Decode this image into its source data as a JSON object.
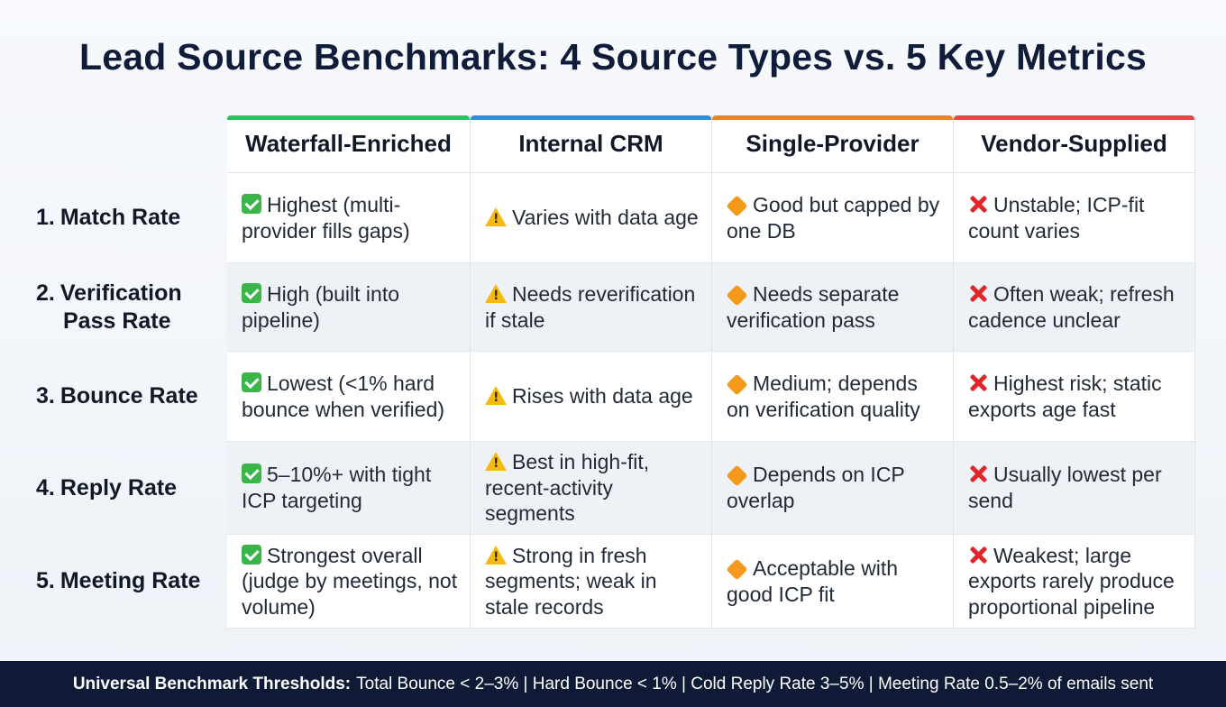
{
  "title": "Lead Source Benchmarks: 4 Source Types vs. 5 Key Metrics",
  "columns": [
    {
      "label": "Waterfall-Enriched",
      "color": "#2fbf63"
    },
    {
      "label": "Internal CRM",
      "color": "#2f8ed9"
    },
    {
      "label": "Single-Provider",
      "color": "#e6862a"
    },
    {
      "label": "Vendor-Supplied",
      "color": "#dd4a48"
    }
  ],
  "rows": [
    {
      "number": "1.",
      "label_line1": "Match Rate",
      "label_line2": "",
      "cells": [
        {
          "icon": "check-icon",
          "text": "Highest (multi-provider fills gaps)"
        },
        {
          "icon": "warning-icon",
          "text": "Varies with data age"
        },
        {
          "icon": "diamond-icon",
          "text": "Good but capped by one DB"
        },
        {
          "icon": "cross-icon",
          "text": "Unstable; ICP-fit count varies"
        }
      ]
    },
    {
      "number": "2.",
      "label_line1": "Verification",
      "label_line2": "Pass Rate",
      "cells": [
        {
          "icon": "check-icon",
          "text": "High (built into pipeline)"
        },
        {
          "icon": "warning-icon",
          "text": "Needs reverification if stale"
        },
        {
          "icon": "diamond-icon",
          "text": "Needs separate verification pass"
        },
        {
          "icon": "cross-icon",
          "text": "Often weak; refresh cadence unclear"
        }
      ]
    },
    {
      "number": "3.",
      "label_line1": "Bounce Rate",
      "label_line2": "",
      "cells": [
        {
          "icon": "check-icon",
          "text": "Lowest (<1% hard bounce when verified)"
        },
        {
          "icon": "warning-icon",
          "text": "Rises with data age"
        },
        {
          "icon": "diamond-icon",
          "text": "Medium; depends on verification quality"
        },
        {
          "icon": "cross-icon",
          "text": "Highest risk; static exports age fast"
        }
      ]
    },
    {
      "number": "4.",
      "label_line1": "Reply Rate",
      "label_line2": "",
      "cells": [
        {
          "icon": "check-icon",
          "text": "5–10%+ with tight ICP targeting"
        },
        {
          "icon": "warning-icon",
          "text": "Best in high-fit, recent-activity segments"
        },
        {
          "icon": "diamond-icon",
          "text": "Depends on ICP overlap"
        },
        {
          "icon": "cross-icon",
          "text": "Usually lowest per send"
        }
      ]
    },
    {
      "number": "5.",
      "label_line1": "Meeting Rate",
      "label_line2": "",
      "cells": [
        {
          "icon": "check-icon",
          "text": "Strongest overall (judge by meetings, not volume)"
        },
        {
          "icon": "warning-icon",
          "text": "Strong in fresh segments; weak in stale records"
        },
        {
          "icon": "diamond-icon",
          "text": "Acceptable with good ICP fit"
        },
        {
          "icon": "cross-icon",
          "text": "Weakest; large exports rarely produce proportional pipeline"
        }
      ]
    }
  ],
  "footer": {
    "label": "Universal Benchmark Thresholds:",
    "text": "Total Bounce < 2–3% | Hard Bounce < 1% | Cold Reply Rate 3–5% | Meeting Rate 0.5–2% of emails sent"
  }
}
